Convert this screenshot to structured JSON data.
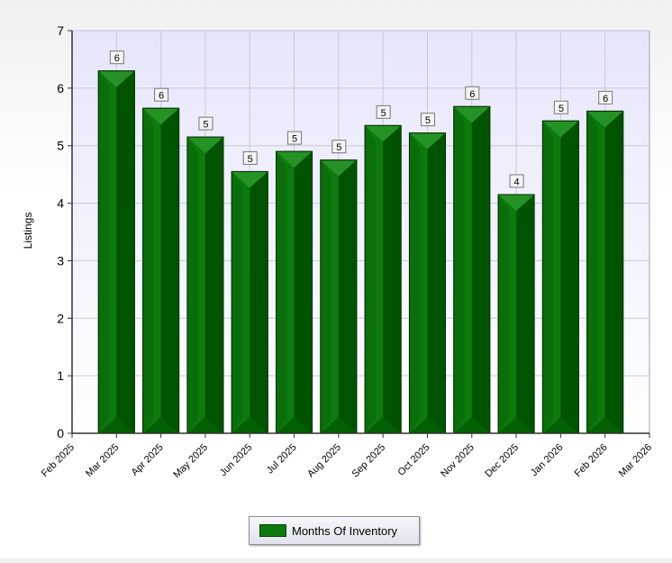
{
  "chart_data": {
    "type": "bar",
    "title": "",
    "ylabel": "Listings",
    "xlabel": "",
    "ylim": [
      0,
      7
    ],
    "yticks": [
      "0",
      "1",
      "2",
      "3",
      "4",
      "5",
      "6",
      "7"
    ],
    "xticks": [
      "Feb 2025",
      "Mar 2025",
      "Apr 2025",
      "May 2025",
      "Jun 2025",
      "Jul 2025",
      "Aug 2025",
      "Sep 2025",
      "Oct 2025",
      "Nov 2025",
      "Dec 2025",
      "Jan 2026",
      "Feb 2026",
      "Mar 2026"
    ],
    "categories": [
      "Mar 2025",
      "Apr 2025",
      "May 2025",
      "Jun 2025",
      "Jul 2025",
      "Aug 2025",
      "Sep 2025",
      "Oct 2025",
      "Nov 2025",
      "Dec 2025",
      "Jan 2026",
      "Feb 2026"
    ],
    "series": [
      {
        "name": "Months Of Inventory",
        "values": [
          6.3,
          5.65,
          5.15,
          4.55,
          4.9,
          4.75,
          5.35,
          5.22,
          5.68,
          4.15,
          5.43,
          5.6
        ],
        "labels": [
          "6",
          "6",
          "5",
          "5",
          "5",
          "5",
          "5",
          "5",
          "6",
          "4",
          "5",
          "6"
        ]
      }
    ],
    "grid": true,
    "legend_position": "bottom-center",
    "colors": {
      "bar_face": "#0d7a0d",
      "bar_dark": "#005400",
      "bar_light": "#3aa63a",
      "plot_bg_top": "#e8e8fb",
      "plot_bg_bottom": "#ffffff",
      "grid": "#c8c8d8"
    }
  }
}
